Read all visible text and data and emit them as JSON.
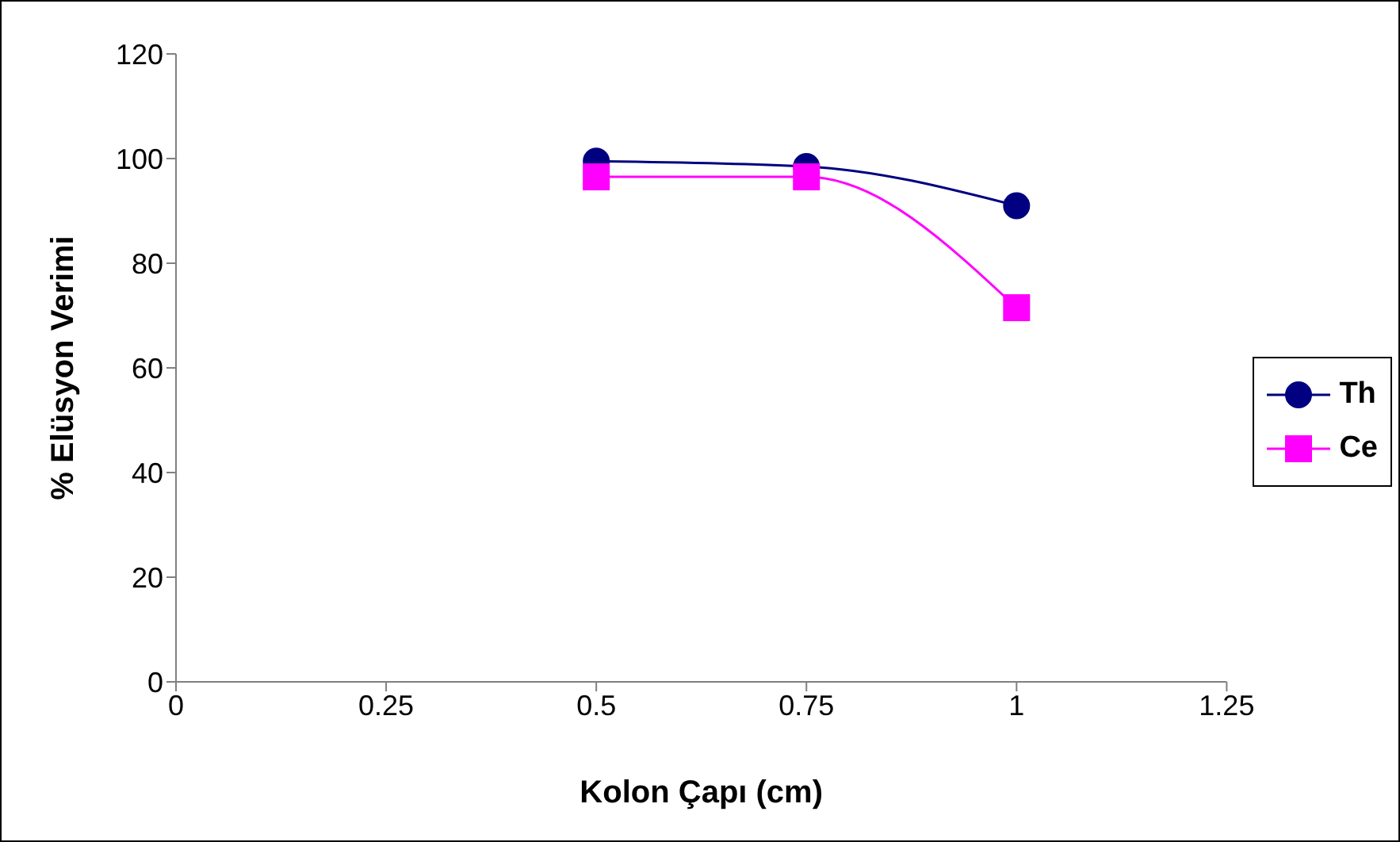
{
  "chart_data": {
    "type": "line",
    "xlabel": "Kolon Çapı (cm)",
    "ylabel": "% Elüsyon Verimi",
    "x": [
      0.5,
      0.75,
      1
    ],
    "series": [
      {
        "name": "Th",
        "color": "#000080",
        "marker": "circle",
        "values": [
          99.5,
          98.5,
          91
        ]
      },
      {
        "name": "Ce",
        "color": "#ff00ff",
        "marker": "square",
        "values": [
          96.5,
          96.5,
          71.5
        ]
      }
    ],
    "xlim": [
      0,
      1.25
    ],
    "xticks": [
      0,
      0.25,
      0.5,
      0.75,
      1,
      1.25
    ],
    "ylim": [
      0,
      120
    ],
    "yticks": [
      0,
      20,
      40,
      60,
      80,
      100,
      120
    ],
    "legend": "right"
  }
}
